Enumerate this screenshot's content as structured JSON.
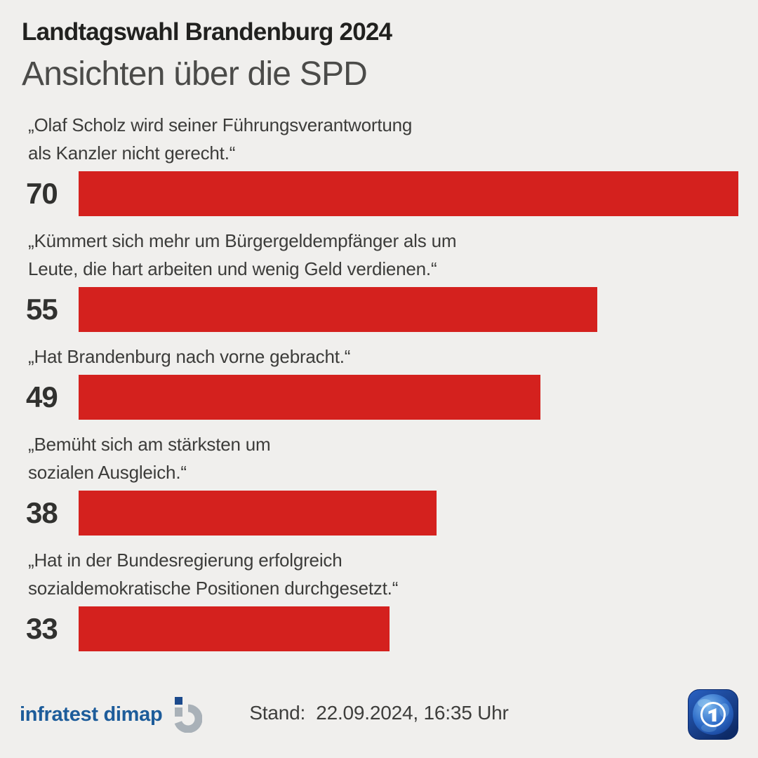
{
  "header": {
    "kicker": "Landtagswahl Brandenburg 2024",
    "title": "Ansichten über die SPD"
  },
  "chart_data": {
    "type": "bar",
    "orientation": "horizontal",
    "title": "Ansichten über die SPD",
    "max_scale": 70,
    "bar_color": "#d4211e",
    "grid": false,
    "legend": false,
    "categories": [
      "„Olaf Scholz wird seiner Führungsverantwortung als Kanzler nicht gerecht.“",
      "„Kümmert sich mehr um Bürgergeldempfänger als um Leute, die hart arbeiten und wenig Geld verdienen.“",
      "„Hat Brandenburg nach vorne gebracht.“",
      "„Bemüht sich am stärksten um sozialen Ausgleich.“",
      "„Hat in der Bundesregierung erfolgreich sozialdemokratische Positionen durchgesetzt.“"
    ],
    "values": [
      70,
      55,
      49,
      38,
      33
    ],
    "items": [
      {
        "lines": [
          "„Olaf Scholz wird seiner Führungsverantwortung",
          "als Kanzler nicht gerecht.“"
        ],
        "value": 70
      },
      {
        "lines": [
          "„Kümmert sich mehr um Bürgergeldempfänger als um",
          "Leute, die hart arbeiten und wenig Geld verdienen.“"
        ],
        "value": 55
      },
      {
        "lines": [
          "„Hat Brandenburg nach vorne gebracht.“"
        ],
        "value": 49
      },
      {
        "lines": [
          "„Bemüht sich am stärksten um",
          "sozialen Ausgleich.“"
        ],
        "value": 38
      },
      {
        "lines": [
          "„Hat in der Bundesregierung erfolgreich",
          "sozialdemokratische Positionen durchgesetzt.“"
        ],
        "value": 33
      }
    ]
  },
  "footer": {
    "source": "infratest dimap",
    "stand": "Stand:  22.09.2024, 16:35 Uhr",
    "logos": {
      "left": "infratest-dimap-mark",
      "right": "ard-1-globe"
    },
    "colors": {
      "brand_blue": "#1d5c9a",
      "mark_gray": "#a9b1b8",
      "mark_blue": "#1c4a8c"
    }
  }
}
